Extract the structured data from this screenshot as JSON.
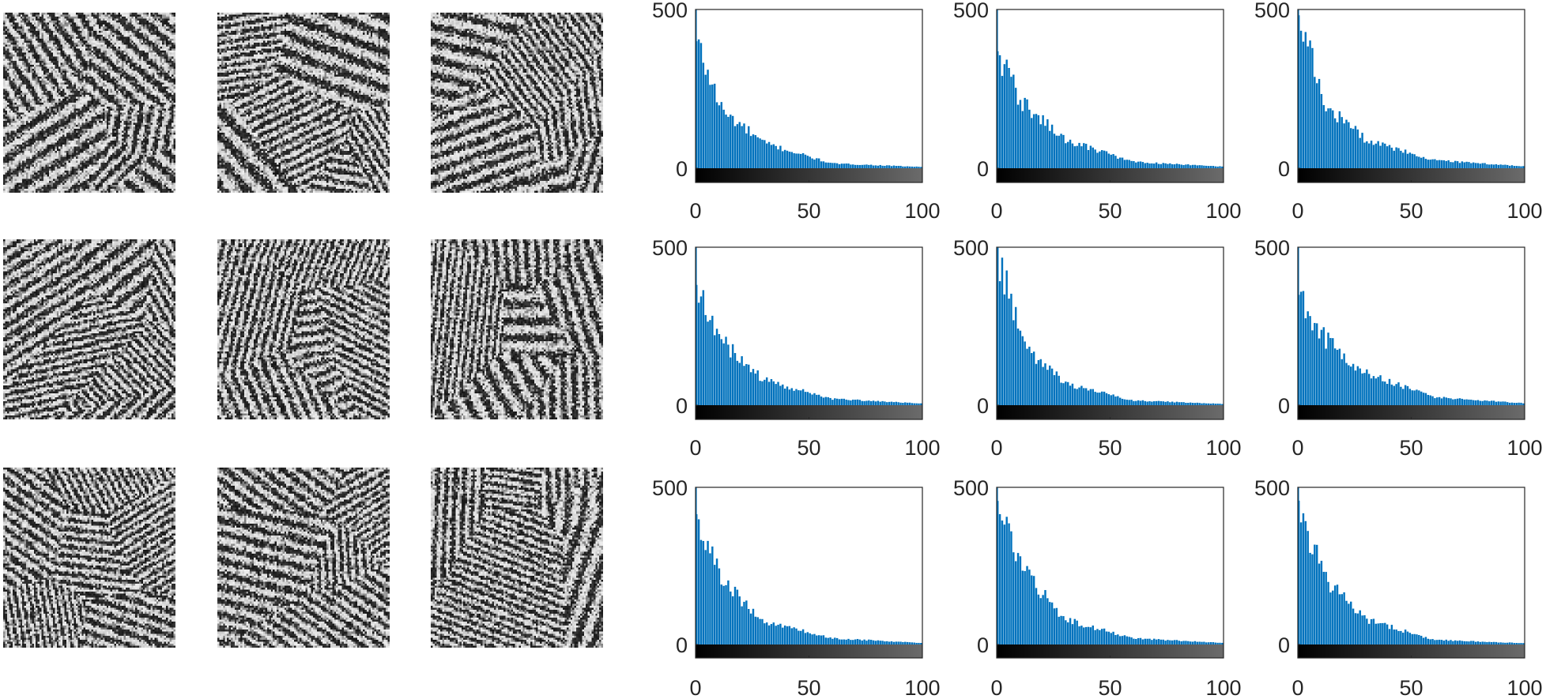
{
  "figure": {
    "layout": "3 rows x 6 columns: left 3 columns are noisy grayscale texture patches, right 3 columns are histograms with a grayscale colorbar below each",
    "image_panels": [
      {
        "row": 1,
        "col": 1,
        "content": "grayscale noise texture patch"
      },
      {
        "row": 1,
        "col": 2,
        "content": "grayscale noise texture patch"
      },
      {
        "row": 1,
        "col": 3,
        "content": "grayscale noise texture patch"
      },
      {
        "row": 2,
        "col": 1,
        "content": "grayscale noise texture patch"
      },
      {
        "row": 2,
        "col": 2,
        "content": "grayscale noise texture patch"
      },
      {
        "row": 2,
        "col": 3,
        "content": "grayscale noise texture patch"
      },
      {
        "row": 3,
        "col": 1,
        "content": "grayscale noise texture patch"
      },
      {
        "row": 3,
        "col": 2,
        "content": "grayscale noise texture patch"
      },
      {
        "row": 3,
        "col": 3,
        "content": "grayscale noise texture patch"
      }
    ]
  },
  "colors": {
    "bar": "#0072BD",
    "axis": "#262626",
    "colorbar_start": "#000000",
    "colorbar_end": "#6b6b6b"
  },
  "chart_data": [
    {
      "type": "bar",
      "x": [
        0,
        100
      ],
      "xlim": [
        0,
        100
      ],
      "ylim": [
        0,
        500
      ],
      "xticks": [
        "0",
        "50",
        "100"
      ],
      "yticks": [
        "0",
        "500"
      ],
      "grid": false,
      "decay": {
        "start": 405,
        "mid": 180,
        "at_30": 80,
        "at_60": 15,
        "tail": 4
      }
    },
    {
      "type": "bar",
      "x": [
        0,
        100
      ],
      "xlim": [
        0,
        100
      ],
      "ylim": [
        0,
        500
      ],
      "xticks": [
        "0",
        "50",
        "100"
      ],
      "yticks": [
        "0",
        "500"
      ],
      "grid": false,
      "decay": {
        "start": 370,
        "mid": 200,
        "at_30": 90,
        "at_60": 20,
        "tail": 5
      }
    },
    {
      "type": "bar",
      "x": [
        0,
        100
      ],
      "xlim": [
        0,
        100
      ],
      "ylim": [
        0,
        500
      ],
      "xticks": [
        "0",
        "50",
        "100"
      ],
      "yticks": [
        "0",
        "500"
      ],
      "grid": false,
      "decay": {
        "start": 485,
        "mid": 200,
        "at_30": 90,
        "at_60": 25,
        "tail": 6
      }
    },
    {
      "type": "bar",
      "x": [
        0,
        100
      ],
      "xlim": [
        0,
        100
      ],
      "ylim": [
        0,
        500
      ],
      "xticks": [
        "0",
        "50",
        "100"
      ],
      "yticks": [
        "0",
        "500"
      ],
      "grid": false,
      "decay": {
        "start": 380,
        "mid": 200,
        "at_30": 80,
        "at_60": 20,
        "tail": 5
      }
    },
    {
      "type": "bar",
      "x": [
        0,
        100
      ],
      "xlim": [
        0,
        100
      ],
      "ylim": [
        0,
        500
      ],
      "xticks": [
        "0",
        "50",
        "100"
      ],
      "yticks": [
        "0",
        "500"
      ],
      "grid": false,
      "decay": {
        "start": 500,
        "mid": 190,
        "at_30": 70,
        "at_60": 15,
        "tail": 4
      }
    },
    {
      "type": "bar",
      "x": [
        0,
        100
      ],
      "xlim": [
        0,
        100
      ],
      "ylim": [
        0,
        500
      ],
      "xticks": [
        "0",
        "50",
        "100"
      ],
      "yticks": [
        "0",
        "500"
      ],
      "grid": false,
      "decay": {
        "start": 345,
        "mid": 210,
        "at_30": 100,
        "at_60": 25,
        "tail": 6
      }
    },
    {
      "type": "bar",
      "x": [
        0,
        100
      ],
      "xlim": [
        0,
        100
      ],
      "ylim": [
        0,
        500
      ],
      "xticks": [
        "0",
        "50",
        "100"
      ],
      "yticks": [
        "0",
        "500"
      ],
      "grid": false,
      "decay": {
        "start": 410,
        "mid": 200,
        "at_30": 75,
        "at_60": 20,
        "tail": 5
      }
    },
    {
      "type": "bar",
      "x": [
        0,
        100
      ],
      "xlim": [
        0,
        100
      ],
      "ylim": [
        0,
        500
      ],
      "xticks": [
        "0",
        "50",
        "100"
      ],
      "yticks": [
        "0",
        "500"
      ],
      "grid": false,
      "decay": {
        "start": 450,
        "mid": 230,
        "at_30": 80,
        "at_60": 20,
        "tail": 5
      }
    },
    {
      "type": "bar",
      "x": [
        0,
        100
      ],
      "xlim": [
        0,
        100
      ],
      "ylim": [
        0,
        500
      ],
      "xticks": [
        "0",
        "50",
        "100"
      ],
      "yticks": [
        "0",
        "500"
      ],
      "grid": false,
      "decay": {
        "start": 450,
        "mid": 210,
        "at_30": 80,
        "at_60": 15,
        "tail": 4
      }
    }
  ]
}
